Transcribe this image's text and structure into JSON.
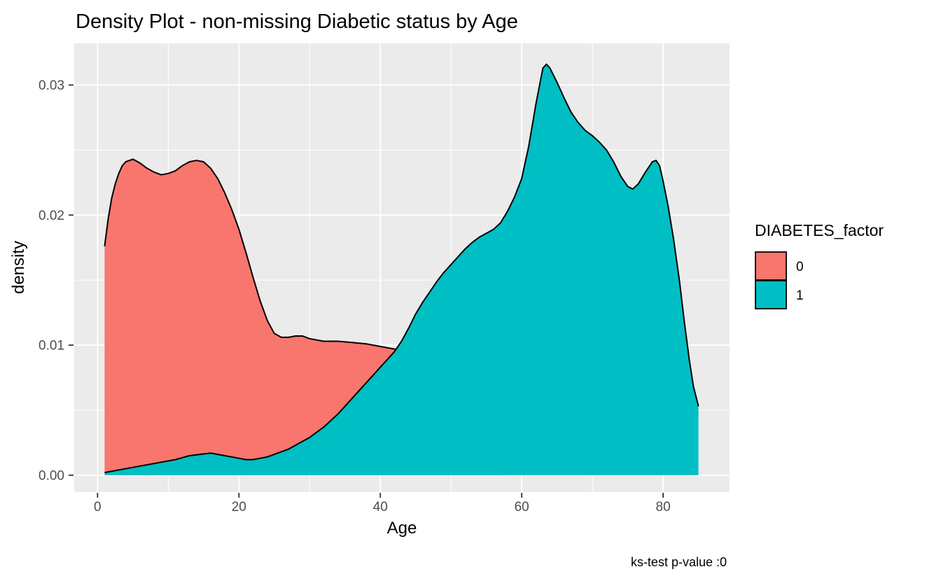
{
  "chart_data": {
    "type": "area",
    "title": "Density Plot - non-missing Diabetic status by Age",
    "xlabel": "Age",
    "ylabel": "density",
    "caption": "ks-test p-value :0",
    "xlim": [
      -3.3,
      89.4
    ],
    "ylim": [
      -0.0013,
      0.0332
    ],
    "x_ticks": [
      {
        "value": 0,
        "label": "0"
      },
      {
        "value": 20,
        "label": "20"
      },
      {
        "value": 40,
        "label": "40"
      },
      {
        "value": 60,
        "label": "60"
      },
      {
        "value": 80,
        "label": "80"
      }
    ],
    "y_ticks": [
      {
        "value": 0.0,
        "label": "0.00"
      },
      {
        "value": 0.01,
        "label": "0.01"
      },
      {
        "value": 0.02,
        "label": "0.02"
      },
      {
        "value": 0.03,
        "label": "0.03"
      }
    ],
    "grid": {
      "x_minor": [
        10,
        30,
        50,
        70
      ],
      "y_minor": [
        0.005,
        0.015,
        0.025
      ],
      "grid_on": true
    },
    "legend": {
      "title": "DIABETES_factor",
      "position": "right",
      "entries": [
        {
          "label": "0",
          "color": "#F8766D"
        },
        {
          "label": "1",
          "color": "#00BFC4"
        }
      ]
    },
    "series": [
      {
        "name": "0",
        "color": "#F8766D",
        "points": [
          [
            1,
            0.0176
          ],
          [
            1.5,
            0.0197
          ],
          [
            2,
            0.0213
          ],
          [
            2.5,
            0.0224
          ],
          [
            3,
            0.0232
          ],
          [
            3.5,
            0.0238
          ],
          [
            4,
            0.0241
          ],
          [
            5,
            0.0243
          ],
          [
            6,
            0.024
          ],
          [
            7,
            0.0236
          ],
          [
            8,
            0.0233
          ],
          [
            9,
            0.0231
          ],
          [
            10,
            0.0232
          ],
          [
            11,
            0.0234
          ],
          [
            12,
            0.0238
          ],
          [
            13,
            0.0241
          ],
          [
            14,
            0.0242
          ],
          [
            15,
            0.0241
          ],
          [
            16,
            0.0236
          ],
          [
            17,
            0.0228
          ],
          [
            18,
            0.0217
          ],
          [
            19,
            0.0204
          ],
          [
            20,
            0.0189
          ],
          [
            21,
            0.0171
          ],
          [
            22,
            0.0152
          ],
          [
            23,
            0.0134
          ],
          [
            24,
            0.0119
          ],
          [
            25,
            0.0109
          ],
          [
            26,
            0.0106
          ],
          [
            27,
            0.0106
          ],
          [
            28,
            0.0107
          ],
          [
            29,
            0.0107
          ],
          [
            30,
            0.0105
          ],
          [
            32,
            0.0103
          ],
          [
            34,
            0.0103
          ],
          [
            36,
            0.0102
          ],
          [
            38,
            0.0101
          ],
          [
            40,
            0.0099
          ],
          [
            41,
            0.0098
          ],
          [
            42,
            0.0097
          ],
          [
            43,
            0.0095
          ],
          [
            44,
            0.0091
          ],
          [
            45,
            0.0084
          ],
          [
            46,
            0.0074
          ],
          [
            47,
            0.0062
          ],
          [
            48,
            0.005
          ],
          [
            50,
            0.003
          ],
          [
            52,
            0.0016
          ],
          [
            54,
            0.0008
          ],
          [
            56,
            0.0003
          ],
          [
            58,
            0.0001
          ]
        ]
      },
      {
        "name": "1",
        "color": "#00BFC4",
        "points": [
          [
            1,
            0.0002
          ],
          [
            3,
            0.0004
          ],
          [
            5,
            0.0006
          ],
          [
            7,
            0.0008
          ],
          [
            9,
            0.001
          ],
          [
            11,
            0.0012
          ],
          [
            13,
            0.0015
          ],
          [
            14.5,
            0.0016
          ],
          [
            16,
            0.0017
          ],
          [
            17,
            0.0016
          ],
          [
            18,
            0.0015
          ],
          [
            19,
            0.0014
          ],
          [
            20,
            0.0013
          ],
          [
            21,
            0.0012
          ],
          [
            22,
            0.0012
          ],
          [
            23,
            0.0013
          ],
          [
            24,
            0.0014
          ],
          [
            25,
            0.0016
          ],
          [
            26,
            0.0018
          ],
          [
            27,
            0.002
          ],
          [
            28,
            0.0023
          ],
          [
            29,
            0.0026
          ],
          [
            30,
            0.0029
          ],
          [
            31,
            0.0033
          ],
          [
            32,
            0.0037
          ],
          [
            33,
            0.0042
          ],
          [
            34,
            0.0047
          ],
          [
            35,
            0.0053
          ],
          [
            36,
            0.0059
          ],
          [
            37,
            0.0065
          ],
          [
            38,
            0.0071
          ],
          [
            39,
            0.0077
          ],
          [
            40,
            0.0083
          ],
          [
            41,
            0.0089
          ],
          [
            42,
            0.0095
          ],
          [
            43,
            0.0103
          ],
          [
            44,
            0.0113
          ],
          [
            45,
            0.0124
          ],
          [
            46,
            0.0133
          ],
          [
            47,
            0.0141
          ],
          [
            48,
            0.0149
          ],
          [
            49,
            0.0156
          ],
          [
            50,
            0.0162
          ],
          [
            51,
            0.0168
          ],
          [
            52,
            0.0174
          ],
          [
            53,
            0.0179
          ],
          [
            54,
            0.0183
          ],
          [
            55,
            0.0186
          ],
          [
            56,
            0.0189
          ],
          [
            57,
            0.0194
          ],
          [
            58,
            0.0203
          ],
          [
            59,
            0.0214
          ],
          [
            60,
            0.0228
          ],
          [
            61,
            0.0253
          ],
          [
            62,
            0.0285
          ],
          [
            63,
            0.0313
          ],
          [
            63.5,
            0.0316
          ],
          [
            64,
            0.0313
          ],
          [
            65,
            0.0302
          ],
          [
            66,
            0.029
          ],
          [
            67,
            0.0279
          ],
          [
            68,
            0.0271
          ],
          [
            69,
            0.0265
          ],
          [
            70,
            0.0261
          ],
          [
            71,
            0.0256
          ],
          [
            72,
            0.025
          ],
          [
            73,
            0.0241
          ],
          [
            74,
            0.023
          ],
          [
            75,
            0.0222
          ],
          [
            75.7,
            0.022
          ],
          [
            76.5,
            0.0224
          ],
          [
            77.5,
            0.0233
          ],
          [
            78.5,
            0.0241
          ],
          [
            79,
            0.0242
          ],
          [
            79.5,
            0.0238
          ],
          [
            80,
            0.0226
          ],
          [
            80.7,
            0.0207
          ],
          [
            81.5,
            0.0181
          ],
          [
            82.3,
            0.015
          ],
          [
            83,
            0.0118
          ],
          [
            83.7,
            0.0089
          ],
          [
            84.3,
            0.0068
          ],
          [
            85,
            0.0053
          ]
        ]
      }
    ],
    "style": {
      "panel_bg": "#EBEBEB",
      "grid_color": "#FFFFFF",
      "tick_color": "#333333",
      "tick_label_color": "#4D4D4D",
      "outline_color": "#000000"
    }
  }
}
